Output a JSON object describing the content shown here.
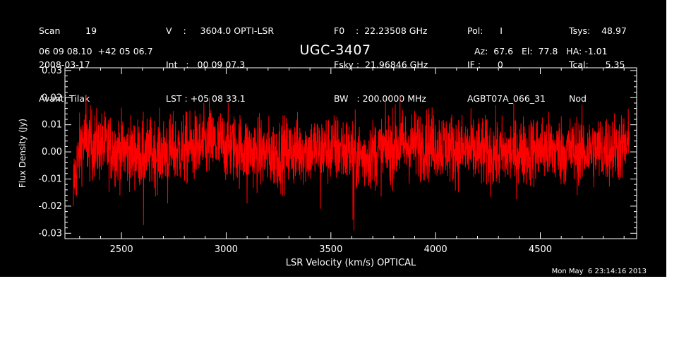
{
  "header": {
    "col1": [
      "Scan         19",
      "2008-03-17",
      "Avanti Tilak"
    ],
    "col2": [
      "V    :     3604.0 OPTI-LSR",
      "Int   :   00 09 07.3",
      "LST : +05 08 33.1"
    ],
    "col3": [
      "F0    :  22.23508 GHz",
      "Fsky :  21.96846 GHz",
      "BW   : 200.0000 MHz"
    ],
    "col4": [
      "Pol:      I",
      "IF :      0",
      "AGBT07A_066_31"
    ],
    "col5": [
      "Tsys:    48.97",
      "Tcal:      5.35",
      "Nod"
    ],
    "coords": "06 09 08.10  +42 05 06.7",
    "object": "UGC-3407",
    "pointing": "Az:  67.6   El:  77.8   HA: -1.01"
  },
  "timestamp": "Mon May  6 23:14:16 2013",
  "colors": {
    "background": "#000000",
    "foreground": "#ffffff",
    "trace": "#ff0000"
  },
  "chart_data": {
    "type": "line",
    "title": "UGC-3407",
    "xlabel": "LSR Velocity (km/s) OPTICAL",
    "ylabel": "Flux Density (Jy)",
    "xlim": [
      2230,
      4960
    ],
    "ylim": [
      -0.032,
      0.031
    ],
    "xticks": [
      2500,
      3000,
      3500,
      4000,
      4500
    ],
    "xtick_labels": [
      "2500",
      "3000",
      "3500",
      "4000",
      "4500"
    ],
    "yticks": [
      -0.03,
      -0.02,
      -0.01,
      0.0,
      0.01,
      0.02,
      0.03
    ],
    "ytick_labels": [
      "-0.03",
      "-0.02",
      "-0.01",
      "0.00",
      "0.01",
      "0.02",
      "0.03"
    ],
    "grid": false,
    "series": [
      {
        "x_start": 2270,
        "x_end": 4925,
        "noise_rms_jy": 0.0065,
        "baseline_x": [
          2270,
          2290,
          2310,
          2330,
          2400,
          2600,
          2800,
          2950,
          3200,
          3400,
          3550,
          3650,
          3800,
          4000,
          4100,
          4300,
          4500,
          4700,
          4925
        ],
        "baseline_y": [
          -0.012,
          -0.004,
          0.004,
          0.003,
          0.002,
          -0.001,
          0.001,
          0.003,
          -0.001,
          0.001,
          0.001,
          -0.002,
          0.002,
          0.003,
          0.001,
          -0.001,
          0.001,
          0.0,
          0.002
        ],
        "features_x": [
          2262,
          2270,
          2605,
          2720,
          3100,
          3450,
          3605,
          3610,
          2330,
          2920,
          3830
        ],
        "features_y": [
          -0.021,
          -0.02,
          -0.027,
          -0.019,
          -0.019,
          -0.021,
          -0.025,
          -0.029,
          0.021,
          0.02,
          0.021
        ]
      }
    ]
  }
}
